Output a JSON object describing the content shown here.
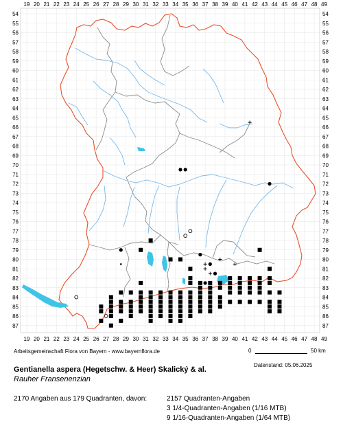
{
  "map": {
    "x_ticks": [
      "19",
      "20",
      "21",
      "22",
      "23",
      "24",
      "25",
      "26",
      "27",
      "28",
      "29",
      "30",
      "31",
      "32",
      "33",
      "34",
      "35",
      "36",
      "37",
      "38",
      "39",
      "40",
      "41",
      "42",
      "43",
      "44",
      "45",
      "46",
      "47",
      "48",
      "49"
    ],
    "y_ticks": [
      "54",
      "55",
      "56",
      "57",
      "58",
      "59",
      "60",
      "61",
      "62",
      "63",
      "64",
      "65",
      "66",
      "67",
      "68",
      "69",
      "70",
      "71",
      "72",
      "73",
      "74",
      "75",
      "76",
      "77",
      "78",
      "79",
      "80",
      "81",
      "82",
      "83",
      "84",
      "85",
      "86",
      "87"
    ],
    "colors": {
      "state_border": "#e8502a",
      "district_border": "#8c8c8c",
      "rivers": "#79b9e8",
      "lakes": "#3ec4e6",
      "markers": "#000000"
    },
    "marker_legend": {
      "square": "quadrant records",
      "filled_circle": "1/4-quadrant records",
      "small_dot": "1/16 MTB records",
      "open_circle": "older records",
      "plus": "status uncertain"
    }
  },
  "footer": {
    "credit": "Arbeitsgemeinschaft Flora von Bayern - www.bayernflora.de",
    "date_label": "Datenstand: 05.06.2025",
    "scale_zero": "0",
    "scale_end": "50 km",
    "title": "Gentianella aspera (Hegetschw. & Heer) Skalický & al.",
    "subtitle": "Rauher Fransenenzian",
    "total": "2170 Angaben aus 179 Quadranten, davon:",
    "cat_1": "2157 Quadranten-Angaben",
    "cat_2": "3 1/4-Quadranten-Angaben (1/16 MTB)",
    "cat_3": "9 1/16-Quadranten-Angaben (1/64 MTB)"
  }
}
